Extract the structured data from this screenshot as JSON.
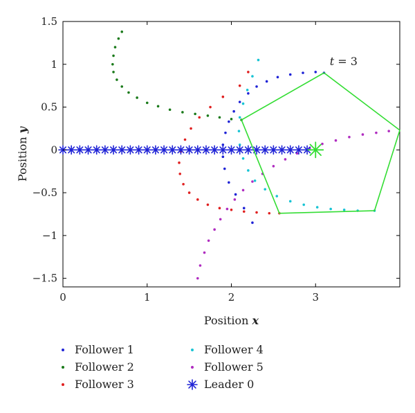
{
  "chart_data": {
    "type": "scatter",
    "xlabel_text": "Position",
    "xlabel_var": "x",
    "ylabel_text": "Position",
    "ylabel_var": "y",
    "annotation": {
      "text_var": "t",
      "text_rest": " = 3",
      "x": 3.25,
      "y": 1.0
    },
    "xlim": [
      0,
      4
    ],
    "ylim": [
      -1.6,
      1.5
    ],
    "xticks": [
      "0",
      "1",
      "2",
      "3"
    ],
    "xtick_values": [
      0,
      1,
      2,
      3
    ],
    "yticks": [
      "1.5",
      "1",
      "0.5",
      "0",
      "−0.5",
      "−1",
      "−1.5"
    ],
    "ytick_values": [
      1.5,
      1,
      0.5,
      0,
      -0.5,
      -1,
      -1.5
    ],
    "grid": false,
    "legend_placement": "below",
    "series": [
      {
        "name": "Follower 1",
        "color": "#1f23d6",
        "marker": "dot",
        "points": [
          [
            2.25,
            -0.85
          ],
          [
            2.15,
            -0.68
          ],
          [
            2.05,
            -0.52
          ],
          [
            1.97,
            -0.38
          ],
          [
            1.92,
            -0.22
          ],
          [
            1.9,
            -0.08
          ],
          [
            1.9,
            0.06
          ],
          [
            1.93,
            0.2
          ],
          [
            1.97,
            0.33
          ],
          [
            2.03,
            0.45
          ],
          [
            2.1,
            0.56
          ],
          [
            2.2,
            0.66
          ],
          [
            2.3,
            0.74
          ],
          [
            2.42,
            0.8
          ],
          [
            2.55,
            0.85
          ],
          [
            2.7,
            0.88
          ],
          [
            2.85,
            0.9
          ],
          [
            3.0,
            0.91
          ],
          [
            3.1,
            0.9
          ]
        ]
      },
      {
        "name": "Follower 2",
        "color": "#1a7a1a",
        "marker": "dot",
        "points": [
          [
            0.7,
            1.38
          ],
          [
            0.66,
            1.3
          ],
          [
            0.62,
            1.2
          ],
          [
            0.6,
            1.1
          ],
          [
            0.59,
            1.0
          ],
          [
            0.6,
            0.91
          ],
          [
            0.64,
            0.82
          ],
          [
            0.7,
            0.74
          ],
          [
            0.78,
            0.67
          ],
          [
            0.88,
            0.61
          ],
          [
            1.0,
            0.55
          ],
          [
            1.13,
            0.51
          ],
          [
            1.27,
            0.47
          ],
          [
            1.42,
            0.44
          ],
          [
            1.57,
            0.42
          ],
          [
            1.72,
            0.4
          ],
          [
            1.86,
            0.38
          ],
          [
            2.0,
            0.36
          ],
          [
            2.12,
            0.35
          ]
        ]
      },
      {
        "name": "Follower 3",
        "color": "#e02020",
        "marker": "dot",
        "points": [
          [
            2.2,
            0.91
          ],
          [
            2.1,
            0.75
          ],
          [
            1.9,
            0.62
          ],
          [
            1.75,
            0.5
          ],
          [
            1.62,
            0.38
          ],
          [
            1.52,
            0.25
          ],
          [
            1.45,
            0.12
          ],
          [
            1.4,
            -0.02
          ],
          [
            1.38,
            -0.15
          ],
          [
            1.39,
            -0.28
          ],
          [
            1.43,
            -0.4
          ],
          [
            1.5,
            -0.5
          ],
          [
            1.6,
            -0.58
          ],
          [
            1.72,
            -0.64
          ],
          [
            1.86,
            -0.68
          ],
          [
            2.0,
            -0.7
          ],
          [
            2.15,
            -0.72
          ],
          [
            2.3,
            -0.73
          ],
          [
            2.45,
            -0.74
          ],
          [
            2.57,
            -0.74
          ]
        ]
      },
      {
        "name": "Follower 4",
        "color": "#18c4d4",
        "marker": "dot",
        "points": [
          [
            2.32,
            1.05
          ],
          [
            2.25,
            0.86
          ],
          [
            2.19,
            0.7
          ],
          [
            2.14,
            0.54
          ],
          [
            2.1,
            0.38
          ],
          [
            2.09,
            0.22
          ],
          [
            2.1,
            0.06
          ],
          [
            2.14,
            -0.1
          ],
          [
            2.2,
            -0.24
          ],
          [
            2.28,
            -0.36
          ],
          [
            2.4,
            -0.46
          ],
          [
            2.54,
            -0.54
          ],
          [
            2.7,
            -0.6
          ],
          [
            2.86,
            -0.64
          ],
          [
            3.02,
            -0.67
          ],
          [
            3.18,
            -0.69
          ],
          [
            3.34,
            -0.7
          ],
          [
            3.5,
            -0.71
          ],
          [
            3.7,
            -0.71
          ]
        ]
      },
      {
        "name": "Follower 5",
        "color": "#b02cc0",
        "marker": "dot",
        "points": [
          [
            1.6,
            -1.5
          ],
          [
            1.63,
            -1.35
          ],
          [
            1.68,
            -1.2
          ],
          [
            1.73,
            -1.06
          ],
          [
            1.8,
            -0.93
          ],
          [
            1.87,
            -0.81
          ],
          [
            1.95,
            -0.69
          ],
          [
            2.04,
            -0.58
          ],
          [
            2.14,
            -0.47
          ],
          [
            2.25,
            -0.37
          ],
          [
            2.37,
            -0.28
          ],
          [
            2.5,
            -0.19
          ],
          [
            2.64,
            -0.11
          ],
          [
            2.78,
            -0.04
          ],
          [
            2.93,
            0.02
          ],
          [
            3.08,
            0.07
          ],
          [
            3.24,
            0.11
          ],
          [
            3.4,
            0.15
          ],
          [
            3.56,
            0.18
          ],
          [
            3.72,
            0.2
          ],
          [
            3.87,
            0.22
          ]
        ]
      },
      {
        "name": "Leader 0",
        "color": "#1f23d6",
        "marker": "asterisk",
        "points": [
          [
            0.0,
            0
          ],
          [
            0.1,
            0
          ],
          [
            0.2,
            0
          ],
          [
            0.3,
            0
          ],
          [
            0.4,
            0
          ],
          [
            0.5,
            0
          ],
          [
            0.6,
            0
          ],
          [
            0.7,
            0
          ],
          [
            0.8,
            0
          ],
          [
            0.9,
            0
          ],
          [
            1.0,
            0
          ],
          [
            1.1,
            0
          ],
          [
            1.2,
            0
          ],
          [
            1.3,
            0
          ],
          [
            1.4,
            0
          ],
          [
            1.5,
            0
          ],
          [
            1.6,
            0
          ],
          [
            1.7,
            0
          ],
          [
            1.8,
            0
          ],
          [
            1.9,
            0
          ],
          [
            2.0,
            0
          ],
          [
            2.1,
            0
          ],
          [
            2.2,
            0
          ],
          [
            2.3,
            0
          ],
          [
            2.4,
            0
          ],
          [
            2.5,
            0
          ],
          [
            2.6,
            0
          ],
          [
            2.7,
            0
          ],
          [
            2.8,
            0
          ],
          [
            2.9,
            0
          ]
        ]
      }
    ],
    "formation": {
      "color": "#33dd33",
      "vertices": [
        [
          2.12,
          0.35
        ],
        [
          3.1,
          0.9
        ],
        [
          4.0,
          0.23
        ],
        [
          3.7,
          -0.71
        ],
        [
          2.57,
          -0.74
        ]
      ],
      "leader_position": [
        3.0,
        0.0
      ]
    },
    "legend": [
      {
        "label": "Follower 1",
        "series": 0
      },
      {
        "label": "Follower 2",
        "series": 1
      },
      {
        "label": "Follower 3",
        "series": 2
      },
      {
        "label": "Follower 4",
        "series": 3
      },
      {
        "label": "Follower 5",
        "series": 4
      },
      {
        "label": "Leader 0",
        "series": 5
      }
    ]
  }
}
